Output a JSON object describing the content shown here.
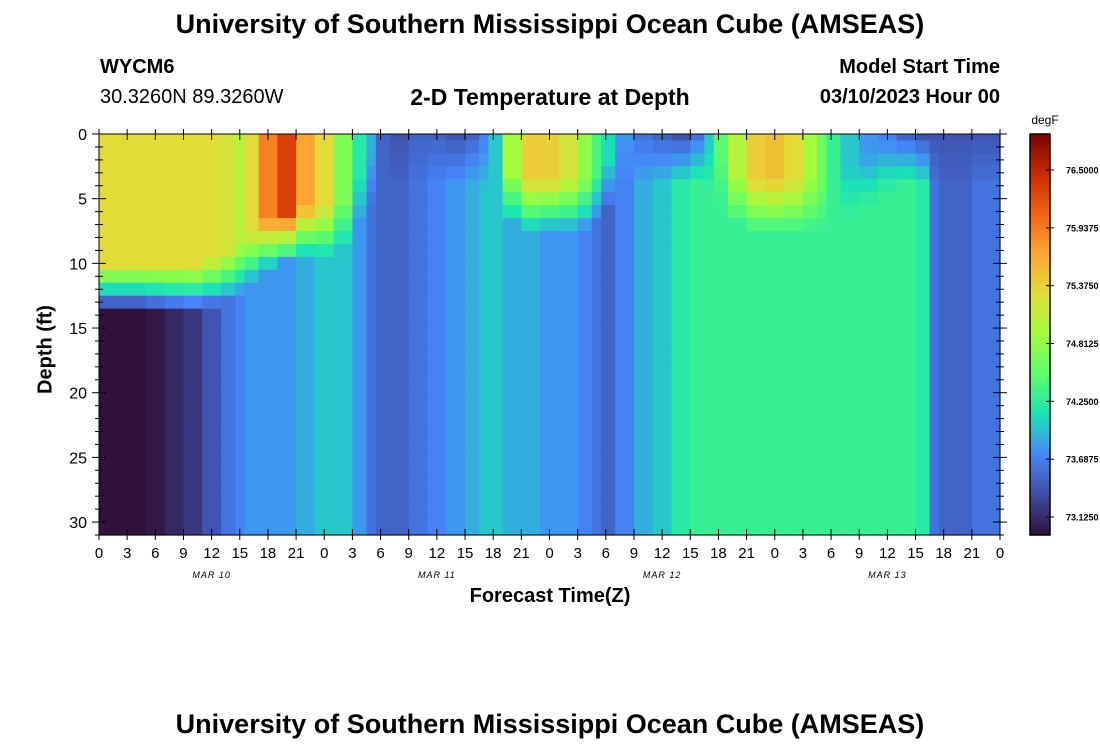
{
  "header": {
    "title": "University of Southern Mississippi Ocean Cube (AMSEAS)",
    "station_id": "WYCM6",
    "coordinates": "30.3260N  89.3260W",
    "subtitle": "2-D Temperature at Depth",
    "model_start_label": "Model Start Time",
    "model_start_value": "03/10/2023 Hour 00"
  },
  "footer": {
    "title": "University of Southern Mississippi Ocean Cube (AMSEAS)"
  },
  "chart_data": {
    "type": "heatmap",
    "xlabel": "Forecast Time(Z)",
    "ylabel": "Depth (ft)",
    "x_range_hours": [
      0,
      96
    ],
    "y_range_ft": [
      0,
      31
    ],
    "y_inverted": true,
    "x_ticks": [
      "0",
      "3",
      "6",
      "9",
      "12",
      "15",
      "18",
      "21",
      "0",
      "3",
      "6",
      "9",
      "12",
      "15",
      "18",
      "21",
      "0",
      "3",
      "6",
      "9",
      "12",
      "15",
      "18",
      "21",
      "0",
      "3",
      "6",
      "9",
      "12",
      "15",
      "18",
      "21",
      "0"
    ],
    "y_ticks": [
      0,
      5,
      10,
      15,
      20,
      25,
      30
    ],
    "day_labels": [
      {
        "label": "MAR 10",
        "hour": 12
      },
      {
        "label": "MAR 11",
        "hour": 36
      },
      {
        "label": "MAR 12",
        "hour": 60
      },
      {
        "label": "MAR 13",
        "hour": 84
      }
    ],
    "colorbar": {
      "unit": "degF",
      "range": [
        72.95,
        76.85
      ],
      "labels": [
        "76.5000",
        "75.9375",
        "75.3750",
        "74.8125",
        "74.2500",
        "73.6875",
        "73.1250"
      ],
      "label_values": [
        76.5,
        75.9375,
        75.375,
        74.8125,
        74.25,
        73.6875,
        73.125
      ],
      "colors": [
        "#30123b",
        "#3e4ca3",
        "#4686fb",
        "#1ae4b6",
        "#5cfc6c",
        "#a2fc3c",
        "#e1dd37",
        "#fda732",
        "#f36315",
        "#cb2a04",
        "#7a0403"
      ]
    },
    "time_hours": [
      0,
      2,
      4,
      6,
      8,
      10,
      12,
      14,
      15,
      16,
      18,
      20,
      22,
      24,
      26,
      28,
      29,
      30,
      32,
      34,
      36,
      38,
      40,
      41,
      42,
      44,
      46,
      48,
      50,
      52,
      53,
      54,
      56,
      58,
      60,
      62,
      64,
      65,
      66,
      68,
      70,
      72,
      74,
      76,
      77,
      78,
      80,
      82,
      84,
      86,
      88,
      89,
      90,
      92,
      94,
      96
    ],
    "depth_levels_ft": [
      0,
      1,
      2,
      3,
      4,
      5,
      6,
      7,
      8,
      9,
      10,
      11,
      12,
      13,
      14,
      15,
      16,
      17,
      18,
      19,
      20,
      21,
      22,
      23,
      24,
      25,
      26,
      27,
      28,
      29,
      30,
      31
    ],
    "surface_temp_degF": [
      75.3,
      75.3,
      75.3,
      75.3,
      75.3,
      75.3,
      75.3,
      75.2,
      75.0,
      75.3,
      75.9,
      76.3,
      75.7,
      75.3,
      74.7,
      74.2,
      73.9,
      73.5,
      73.4,
      73.5,
      73.5,
      73.4,
      73.5,
      73.7,
      74.0,
      74.9,
      75.4,
      75.4,
      75.2,
      74.8,
      74.4,
      74.1,
      73.8,
      73.6,
      73.5,
      73.4,
      73.6,
      74.0,
      74.5,
      75.0,
      75.4,
      75.5,
      75.3,
      74.9,
      74.6,
      74.3,
      74.0,
      73.8,
      73.7,
      73.5,
      73.4,
      73.4,
      73.4,
      73.4,
      73.4,
      73.4
    ],
    "mixed_layer_depth_ft": [
      10,
      10,
      10,
      10,
      10,
      10,
      9.5,
      9,
      8.5,
      7.5,
      6.5,
      6,
      5.5,
      5.5,
      5,
      3,
      1.5,
      0,
      0,
      0,
      0,
      0,
      0,
      0.5,
      1.5,
      3,
      3.5,
      3.5,
      3.5,
      3.5,
      3,
      2,
      0,
      0,
      0,
      0,
      0,
      0.5,
      1.5,
      3,
      3.5,
      3.5,
      3.5,
      3.5,
      3.5,
      3,
      2.5,
      1.5,
      0.5,
      0,
      0,
      0,
      0,
      0,
      0,
      0
    ],
    "deep_temp_degF": [
      72.9,
      72.9,
      72.9,
      73.0,
      73.1,
      73.2,
      73.4,
      73.6,
      73.7,
      73.8,
      73.8,
      73.8,
      73.9,
      74.0,
      74.0,
      73.8,
      73.6,
      73.5,
      73.5,
      73.6,
      73.7,
      73.8,
      73.9,
      74.0,
      74.0,
      73.9,
      73.9,
      73.8,
      73.8,
      73.7,
      73.6,
      73.5,
      73.7,
      73.9,
      74.0,
      74.2,
      74.3,
      74.3,
      74.3,
      74.3,
      74.3,
      74.3,
      74.3,
      74.3,
      74.3,
      74.3,
      74.3,
      74.3,
      74.3,
      74.3,
      74.2,
      73.6,
      73.5,
      73.5,
      73.6,
      73.6
    ]
  }
}
